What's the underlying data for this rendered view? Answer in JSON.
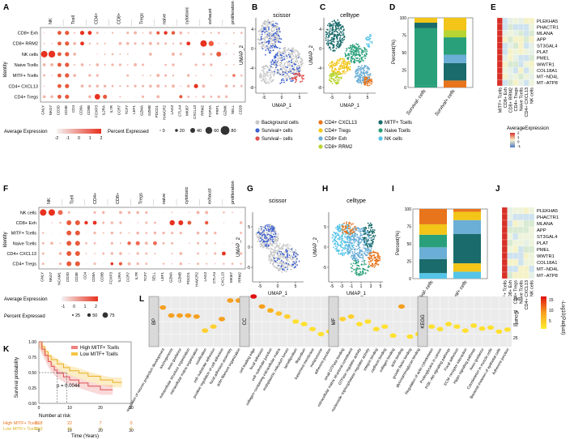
{
  "panels": {
    "A": {
      "letter": "A",
      "ylabel": "Identity",
      "groups": [
        "NK",
        "Tcell",
        "CD4+",
        "CD8+",
        "Tregs",
        "naive",
        "cytotoxic",
        "exhaust",
        "proliferation"
      ],
      "rows": [
        "CD8+ Exh",
        "CD8+ RRM2",
        "NK cells",
        "Naive Tcells",
        "MITF+ Tcells",
        "CD4+ CXCL13",
        "CD4+ Tregs"
      ],
      "genes": [
        "GNLY",
        "NKG7",
        "CD3D",
        "CD3E",
        "CD4",
        "CD8A",
        "CD8B",
        "FOXP3",
        "IL2RA",
        "IL7R",
        "CCR7",
        "TCF7",
        "LEF1",
        "GZMA",
        "GZMB",
        "PDCD1",
        "HAVCR2",
        "LAG3",
        "CTLA4",
        "MKI67",
        "CXCL13",
        "RRM2",
        "TOP2A",
        "PRF1",
        "GZMK",
        "SELL",
        "CD28"
      ],
      "legend_avg_title": "Average Expression",
      "legend_avg_ticks": [
        "-2",
        "-1",
        "0",
        "1",
        "2"
      ],
      "legend_pct_title": "Percent Expressed",
      "legend_pct_values": [
        "0",
        "20",
        "40",
        "60",
        "80"
      ]
    },
    "B": {
      "letter": "B",
      "title": "scissor",
      "xlabel": "UMAP_1",
      "ylabel": "UMAP_2",
      "xticks": [
        "-5",
        "0",
        "5"
      ],
      "yticks": [
        "4",
        "0",
        "-4",
        "-8"
      ]
    },
    "C": {
      "letter": "C",
      "title": "celltype",
      "xlabel": "UMAP_1",
      "ylabel": "UMAP_2",
      "xticks": [
        "-5",
        "0",
        "5"
      ],
      "yticks": [
        "4",
        "0",
        "-4",
        "-8"
      ]
    },
    "D": {
      "letter": "D",
      "ylabel": "Percent(%)",
      "yticks": [
        "100",
        "75",
        "50",
        "25",
        "0"
      ],
      "categories": [
        "Survival- cells",
        "Survival+ cells"
      ]
    },
    "E": {
      "letter": "E",
      "genes": [
        "PLEKHA5",
        "PHACTR1",
        "MLANA",
        "APP",
        "ST3GAL4",
        "PLAT",
        "PMEL",
        "WWTR1",
        "COL18A1",
        "MT−ND4L",
        "MT−ATP8"
      ],
      "cols": [
        "MITF+ Tcells",
        "CD8+ Exh",
        "CD8+ RRM2",
        "CD4+ Tregs",
        "Naive Tcells",
        "CD4+ CXCL13",
        "NK cells"
      ],
      "legend_title": "AverageExpression",
      "legend_ticks": [
        "-1",
        "0",
        "1",
        "2"
      ]
    },
    "legend": {
      "items": [
        {
          "label": "Background cells",
          "color": "#c8c8c8"
        },
        {
          "label": "Survival+ cells",
          "color": "#3b5fd0"
        },
        {
          "label": "Survival− cells",
          "color": "#e05050"
        },
        {
          "label": "CD4+ CXCL13",
          "color": "#e8741c"
        },
        {
          "label": "CD4+ Tregs",
          "color": "#f2c518"
        },
        {
          "label": "CD8+ Exh",
          "color": "#6baed6"
        },
        {
          "label": "CD8+ RRM2",
          "color": "#b8d432"
        },
        {
          "label": "MITF+ Tcells",
          "color": "#1a6b6b"
        },
        {
          "label": "Naive Tcells",
          "color": "#29a07a"
        },
        {
          "label": "NK cells",
          "color": "#55c4e8"
        }
      ]
    },
    "F": {
      "letter": "F",
      "ylabel": "Identity",
      "groups": [
        "NK",
        "Tcell",
        "CD4+",
        "CD8+",
        "Tregs",
        "naive",
        "cytotoxic",
        "exhaust",
        "proliferation"
      ],
      "rows": [
        "NK cells",
        "CD8+ Exh",
        "MITF+ Tcells",
        "Naive Tcells",
        "CD4+ CXCL13",
        "CD4+ Tregs"
      ],
      "genes": [
        "GNLY",
        "NKG7",
        "NCAM1",
        "CD3D",
        "CD3E",
        "CD4",
        "CD8A",
        "CD8B",
        "FOXP3",
        "IL2RA",
        "CCR7",
        "IL7R",
        "TCF7",
        "SELL",
        "LEF1",
        "GZMA",
        "GZMB",
        "PDCD1",
        "HAVCR2",
        "LAG3",
        "CTLA4",
        "CXCL13",
        "MKI67",
        "RRM2"
      ],
      "legend_avg_title": "Average Expression",
      "legend_avg_ticks": [
        "-1",
        "0",
        "1",
        "2"
      ],
      "legend_pct_title": "Percent Expressed",
      "legend_pct_values": [
        "25",
        "50",
        "75"
      ]
    },
    "G": {
      "letter": "G",
      "title": "scissor",
      "xlabel": "UMAP_1",
      "ylabel": "UMAP_2",
      "xticks": [
        "-5",
        "0",
        "5"
      ],
      "yticks": [
        "5",
        "0",
        "-5"
      ]
    },
    "H": {
      "letter": "H",
      "title": "celltype",
      "xlabel": "UMAP_1",
      "ylabel": "UMAP_2",
      "xticks": [
        "-5",
        "-3",
        "-1",
        "1",
        "3",
        "5"
      ],
      "yticks": [
        "5",
        "0",
        "-5"
      ]
    },
    "I": {
      "letter": "I",
      "ylabel": "Percent(%)",
      "yticks": [
        "100",
        "75",
        "50",
        "25",
        "0"
      ],
      "categories": [
        "Survival- cells",
        "Survival+ cells"
      ]
    },
    "J": {
      "letter": "J",
      "genes": [
        "PLEKHA5",
        "PHACTR1",
        "MLANA",
        "APP",
        "ST3GAL4",
        "PLAT",
        "PMEL",
        "WWTR1",
        "COL18A1",
        "MT−ND4L",
        "MT−ATP8"
      ],
      "cols": [
        "MITF+ Tcells",
        "CD8+ Exh",
        "CD4+ Tregs",
        "Naive Tcells",
        "CD4+ CXCL13",
        "NK cells"
      ]
    },
    "K": {
      "letter": "K",
      "ylabel": "Survival probability",
      "xlabel": "Time (Years)",
      "yticks": [
        "1.00",
        "0.75",
        "0.50",
        "0.25",
        "0.00"
      ],
      "xticks": [
        "0",
        "10",
        "20",
        "30"
      ],
      "pvalue": "p = 0.0044",
      "legend_high": "High MITF+ Tcells",
      "legend_low": "Low MITF+ Tcells",
      "risk_title": "Number at risk",
      "risk_high_label": "High MITF+ Tcells",
      "risk_low_label": "Low MITF+ Tcells",
      "risk_high": [
        "218",
        "22",
        "7",
        "0"
      ],
      "risk_low": [
        "219",
        "41",
        "7",
        "0"
      ]
    },
    "L": {
      "letter": "L",
      "facets": [
        "BP",
        "CC",
        "MF",
        "KEGG"
      ],
      "yaxis_title": "Count",
      "yticks": [
        "100",
        "75",
        "50",
        "25"
      ],
      "color_title": "-Log10(Padjust)",
      "color_ticks": [
        "15",
        "10",
        "5"
      ],
      "bp_terms": [
        "regulation of neuron projection development",
        "axonogenesis",
        "axon guidance",
        "extracellular structure organization",
        "extracellular matrix organization",
        "ossification",
        "cell−substrate adhesion",
        "positive regulation of cell adhesion",
        "focal adhesion assembly",
        "actin filament organization"
      ],
      "cc_terms": [
        "cell leading edge",
        "focal adhesion",
        "cell−substrate junction",
        "collagen−containing extracellular matrix",
        "endoplasmic reticulum lumen",
        "lamellipodium",
        "filopodium",
        "basement membrane",
        "melanosome",
        "adherens junction"
      ],
      "mf_terms": [
        "small GTPase binding",
        "extracellular matrix structural constituent",
        "GTPase regulator activity",
        "nucleoside−triphosphatase regulator activity",
        "integrin binding",
        "cadherin binding",
        "collagen binding",
        "actin binding",
        "growth factor binding",
        "glycosaminoglycan binding"
      ],
      "kegg_terms": [
        "Regulation of actin cytoskeleton",
        "Proteoglycans in cancer",
        "PI3K−Akt signaling pathway",
        "Focal adhesion",
        "ECM−receptor interaction",
        "Hippo signaling pathway",
        "Axon guidance",
        "Cytoskeleton in muscle cells",
        "Bacterial invasion of epithelial cells",
        "Adherens junction"
      ]
    }
  }
}
